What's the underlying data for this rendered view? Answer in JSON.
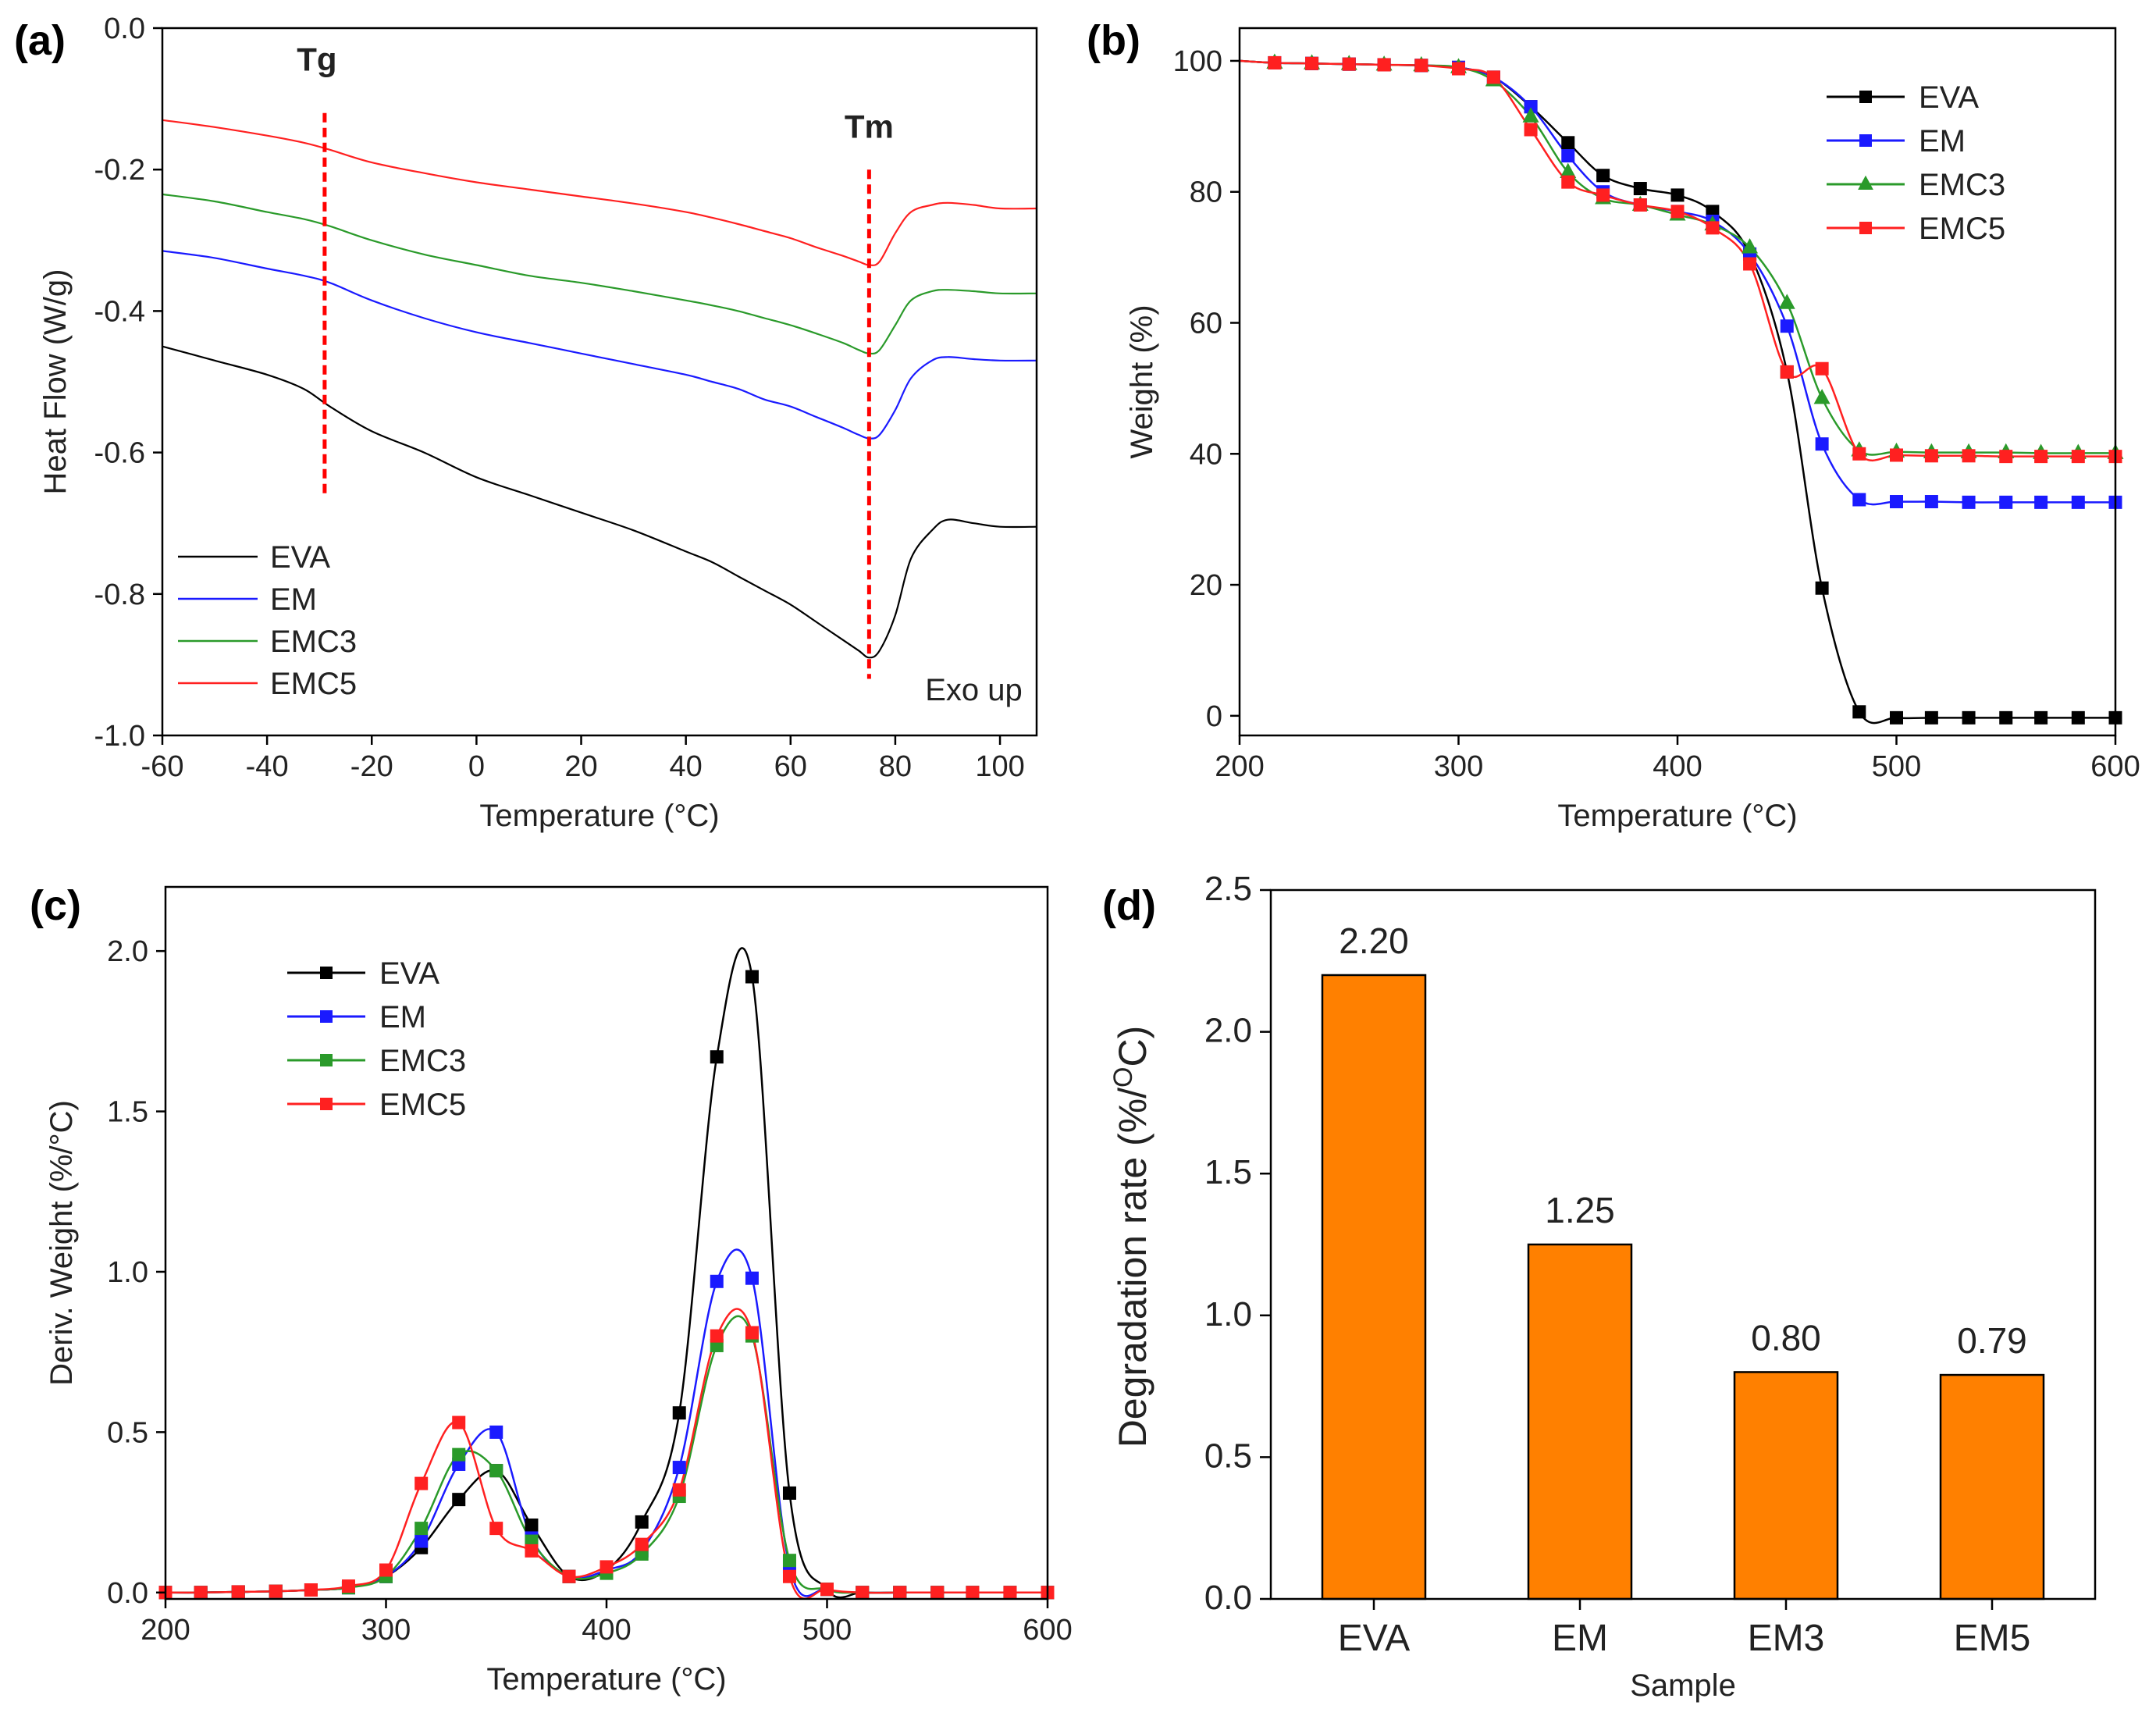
{
  "figure": {
    "panels": [
      "(a)",
      "(b)",
      "(c)",
      "(d)"
    ]
  },
  "chart_data": [
    {
      "id": "a",
      "type": "line",
      "panel_label": "(a)",
      "title": "",
      "xlabel": "Temperature (°C)",
      "ylabel": "Heat Flow (W/g)",
      "xlim": [
        -60,
        107
      ],
      "ylim": [
        -1.0,
        0.0
      ],
      "xticks": [
        -60,
        -40,
        -20,
        0,
        20,
        40,
        60,
        80,
        100
      ],
      "yticks": [
        0.0,
        -0.2,
        -0.4,
        -0.6,
        -0.8,
        -1.0
      ],
      "ytick_labels": [
        "0.0",
        "-0.2",
        "-0.4",
        "-0.6",
        "-0.8",
        "-1.0"
      ],
      "legend": {
        "position": "bottom-left",
        "entries": [
          "EVA",
          "EM",
          "EMC3",
          "EMC5"
        ]
      },
      "series": [
        {
          "name": "EVA",
          "color": "#000000",
          "x": [
            -60,
            -50,
            -40,
            -33,
            -28,
            -20,
            -10,
            0,
            10,
            20,
            30,
            40,
            45,
            50,
            55,
            60,
            65,
            70,
            73,
            75,
            77,
            80,
            83,
            87,
            90,
            95,
            100,
            107
          ],
          "y": [
            -0.45,
            -0.47,
            -0.49,
            -0.51,
            -0.535,
            -0.57,
            -0.6,
            -0.635,
            -0.66,
            -0.685,
            -0.71,
            -0.74,
            -0.755,
            -0.775,
            -0.795,
            -0.815,
            -0.84,
            -0.865,
            -0.88,
            -0.89,
            -0.88,
            -0.83,
            -0.75,
            -0.71,
            -0.695,
            -0.7,
            -0.705,
            -0.705
          ]
        },
        {
          "name": "EM",
          "color": "#1a1aff",
          "x": [
            -60,
            -50,
            -40,
            -33,
            -28,
            -20,
            -10,
            0,
            10,
            20,
            30,
            40,
            45,
            50,
            55,
            60,
            65,
            70,
            73,
            75,
            77,
            80,
            83,
            87,
            90,
            95,
            100,
            107
          ],
          "y": [
            -0.315,
            -0.325,
            -0.34,
            -0.35,
            -0.36,
            -0.385,
            -0.41,
            -0.43,
            -0.445,
            -0.46,
            -0.475,
            -0.49,
            -0.5,
            -0.51,
            -0.525,
            -0.535,
            -0.55,
            -0.565,
            -0.575,
            -0.58,
            -0.575,
            -0.54,
            -0.495,
            -0.47,
            -0.465,
            -0.468,
            -0.47,
            -0.47
          ]
        },
        {
          "name": "EMC3",
          "color": "#2a9a2a",
          "x": [
            -60,
            -50,
            -40,
            -33,
            -28,
            -20,
            -10,
            0,
            10,
            20,
            30,
            40,
            45,
            50,
            55,
            60,
            65,
            70,
            73,
            75,
            77,
            80,
            83,
            87,
            90,
            95,
            100,
            107
          ],
          "y": [
            -0.235,
            -0.245,
            -0.26,
            -0.27,
            -0.28,
            -0.3,
            -0.32,
            -0.335,
            -0.35,
            -0.36,
            -0.372,
            -0.385,
            -0.392,
            -0.4,
            -0.41,
            -0.42,
            -0.432,
            -0.445,
            -0.455,
            -0.46,
            -0.455,
            -0.42,
            -0.385,
            -0.372,
            -0.37,
            -0.372,
            -0.375,
            -0.375
          ]
        },
        {
          "name": "EMC5",
          "color": "#ff2020",
          "x": [
            -60,
            -50,
            -40,
            -33,
            -28,
            -20,
            -10,
            0,
            10,
            20,
            30,
            40,
            45,
            50,
            55,
            60,
            65,
            70,
            73,
            75,
            77,
            80,
            83,
            87,
            90,
            95,
            100,
            107
          ],
          "y": [
            -0.13,
            -0.14,
            -0.152,
            -0.162,
            -0.172,
            -0.19,
            -0.205,
            -0.218,
            -0.228,
            -0.238,
            -0.248,
            -0.26,
            -0.268,
            -0.277,
            -0.287,
            -0.297,
            -0.31,
            -0.322,
            -0.33,
            -0.335,
            -0.33,
            -0.29,
            -0.26,
            -0.25,
            -0.247,
            -0.25,
            -0.255,
            -0.255
          ]
        }
      ],
      "annotations": [
        {
          "text": "Tg",
          "x": -29,
          "y_top": -0.12,
          "y_bottom": -0.66,
          "color": "#ff0000"
        },
        {
          "text": "Tm",
          "x": 75,
          "y_top": -0.2,
          "y_bottom": -0.92,
          "color": "#ff0000"
        },
        {
          "text": "Exo up",
          "x": 95,
          "y": -0.935
        }
      ]
    },
    {
      "id": "b",
      "type": "line",
      "panel_label": "(b)",
      "title": "",
      "xlabel": "Temperature (°C)",
      "ylabel": "Weight (%)",
      "xlim": [
        200,
        600
      ],
      "ylim": [
        -3,
        105
      ],
      "xticks": [
        200,
        300,
        400,
        500,
        600
      ],
      "yticks": [
        0,
        20,
        40,
        60,
        80,
        100
      ],
      "legend": {
        "position": "top-right",
        "entries": [
          "EVA",
          "EM",
          "EMC3",
          "EMC5"
        ]
      },
      "series": [
        {
          "name": "EVA",
          "color": "#000000",
          "marker": "square",
          "x": [
            200,
            216,
            233,
            250,
            266,
            283,
            300,
            316,
            333,
            350,
            366,
            383,
            400,
            416,
            433,
            450,
            466,
            483,
            500,
            516,
            533,
            550,
            566,
            583,
            600
          ],
          "y": [
            100,
            99.7,
            99.6,
            99.5,
            99.4,
            99.3,
            99,
            97.5,
            93,
            87.5,
            82.5,
            80.5,
            79.5,
            77,
            70.5,
            52.5,
            19.5,
            0.6,
            -0.3,
            -0.3,
            -0.3,
            -0.3,
            -0.3,
            -0.3,
            -0.3
          ]
        },
        {
          "name": "EM",
          "color": "#1a1aff",
          "marker": "square",
          "x": [
            200,
            216,
            233,
            250,
            266,
            283,
            300,
            316,
            333,
            350,
            366,
            383,
            400,
            416,
            433,
            450,
            466,
            483,
            500,
            516,
            533,
            550,
            566,
            583,
            600
          ],
          "y": [
            100,
            99.7,
            99.6,
            99.5,
            99.4,
            99.3,
            99,
            97.5,
            93,
            85.5,
            80,
            78,
            77,
            75.5,
            70.5,
            59.5,
            41.5,
            33,
            32.7,
            32.7,
            32.6,
            32.6,
            32.6,
            32.6,
            32.6
          ]
        },
        {
          "name": "EMC3",
          "color": "#2a9a2a",
          "marker": "triangle",
          "x": [
            200,
            216,
            233,
            250,
            266,
            283,
            300,
            316,
            333,
            350,
            366,
            383,
            400,
            416,
            433,
            450,
            466,
            483,
            500,
            516,
            533,
            550,
            566,
            583,
            600
          ],
          "y": [
            100,
            99.7,
            99.6,
            99.5,
            99.4,
            99.3,
            99,
            97,
            91.5,
            83,
            79,
            78,
            76.5,
            75,
            71.5,
            63,
            48.5,
            40.5,
            40.3,
            40.2,
            40.2,
            40.2,
            40.1,
            40.1,
            40.1
          ]
        },
        {
          "name": "EMC5",
          "color": "#ff2020",
          "marker": "square",
          "x": [
            200,
            216,
            233,
            250,
            266,
            283,
            300,
            316,
            333,
            350,
            366,
            383,
            400,
            416,
            433,
            450,
            466,
            483,
            500,
            516,
            533,
            550,
            566,
            583,
            600
          ],
          "y": [
            100,
            99.7,
            99.6,
            99.5,
            99.4,
            99.3,
            98.8,
            97.5,
            89.5,
            81.5,
            79.5,
            78,
            77,
            74.5,
            69,
            52.5,
            53,
            40,
            39.8,
            39.7,
            39.7,
            39.6,
            39.6,
            39.6,
            39.6
          ]
        }
      ]
    },
    {
      "id": "c",
      "type": "line",
      "panel_label": "(c)",
      "title": "",
      "xlabel": "Temperature (°C)",
      "ylabel": "Deriv. Weight (%/°C)",
      "xlim": [
        200,
        600
      ],
      "ylim": [
        -0.02,
        2.2
      ],
      "xticks": [
        200,
        300,
        400,
        500,
        600
      ],
      "yticks": [
        0.0,
        0.5,
        1.0,
        1.5,
        2.0
      ],
      "ytick_labels": [
        "0.0",
        "0.5",
        "1.0",
        "1.5",
        "2.0"
      ],
      "legend": {
        "position": "top-left",
        "entries": [
          "EVA",
          "EM",
          "EMC3",
          "EMC5"
        ]
      },
      "series": [
        {
          "name": "EVA",
          "color": "#000000",
          "marker": "square",
          "x": [
            200,
            216,
            233,
            250,
            266,
            283,
            300,
            316,
            333,
            350,
            366,
            383,
            400,
            416,
            433,
            450,
            466,
            483,
            500,
            516,
            533,
            550,
            566,
            583,
            600
          ],
          "y": [
            0,
            0,
            0.002,
            0.004,
            0.008,
            0.015,
            0.05,
            0.14,
            0.29,
            0.38,
            0.21,
            0.05,
            0.07,
            0.22,
            0.56,
            1.67,
            1.92,
            0.31,
            0.01,
            0,
            0,
            0,
            0,
            0,
            0
          ]
        },
        {
          "name": "EM",
          "color": "#1a1aff",
          "marker": "square",
          "x": [
            200,
            216,
            233,
            250,
            266,
            283,
            300,
            316,
            333,
            350,
            366,
            383,
            400,
            416,
            433,
            450,
            466,
            483,
            500,
            516,
            533,
            550,
            566,
            583,
            600
          ],
          "y": [
            0,
            0,
            0.002,
            0.004,
            0.008,
            0.015,
            0.05,
            0.16,
            0.4,
            0.5,
            0.17,
            0.05,
            0.07,
            0.13,
            0.39,
            0.97,
            0.98,
            0.08,
            0.01,
            0,
            0,
            0,
            0,
            0,
            0
          ]
        },
        {
          "name": "EMC3",
          "color": "#2a9a2a",
          "marker": "square",
          "x": [
            200,
            216,
            233,
            250,
            266,
            283,
            300,
            316,
            333,
            350,
            366,
            383,
            400,
            416,
            433,
            450,
            466,
            483,
            500,
            516,
            533,
            550,
            566,
            583,
            600
          ],
          "y": [
            0,
            0,
            0.002,
            0.004,
            0.008,
            0.015,
            0.05,
            0.2,
            0.43,
            0.38,
            0.16,
            0.05,
            0.06,
            0.12,
            0.3,
            0.77,
            0.8,
            0.1,
            0.01,
            0,
            0,
            0,
            0,
            0,
            0
          ]
        },
        {
          "name": "EMC5",
          "color": "#ff2020",
          "marker": "square",
          "x": [
            200,
            216,
            233,
            250,
            266,
            283,
            300,
            316,
            333,
            350,
            366,
            383,
            400,
            416,
            433,
            450,
            466,
            483,
            500,
            516,
            533,
            550,
            566,
            583,
            600
          ],
          "y": [
            0,
            0,
            0.002,
            0.004,
            0.008,
            0.02,
            0.07,
            0.34,
            0.53,
            0.2,
            0.13,
            0.05,
            0.08,
            0.15,
            0.32,
            0.8,
            0.81,
            0.05,
            0.01,
            0,
            0,
            0,
            0,
            0,
            0
          ]
        }
      ]
    },
    {
      "id": "d",
      "type": "bar",
      "panel_label": "(d)",
      "title": "",
      "xlabel": "Sample",
      "ylabel": "Degradation rate (%/°C)",
      "ylabel_parts": [
        "Degradation rate (%/",
        "O",
        "C)"
      ],
      "categories": [
        "EVA",
        "EM",
        "EM3",
        "EM5"
      ],
      "values": [
        2.2,
        1.25,
        0.8,
        0.79
      ],
      "value_labels": [
        "2.20",
        "1.25",
        "0.80",
        "0.79"
      ],
      "ylim": [
        0.0,
        2.5
      ],
      "yticks": [
        0.0,
        0.5,
        1.0,
        1.5,
        2.0,
        2.5
      ],
      "ytick_labels": [
        "0.0",
        "0.5",
        "1.0",
        "1.5",
        "2.0",
        "2.5"
      ],
      "bar_color": "#ff8000"
    }
  ]
}
